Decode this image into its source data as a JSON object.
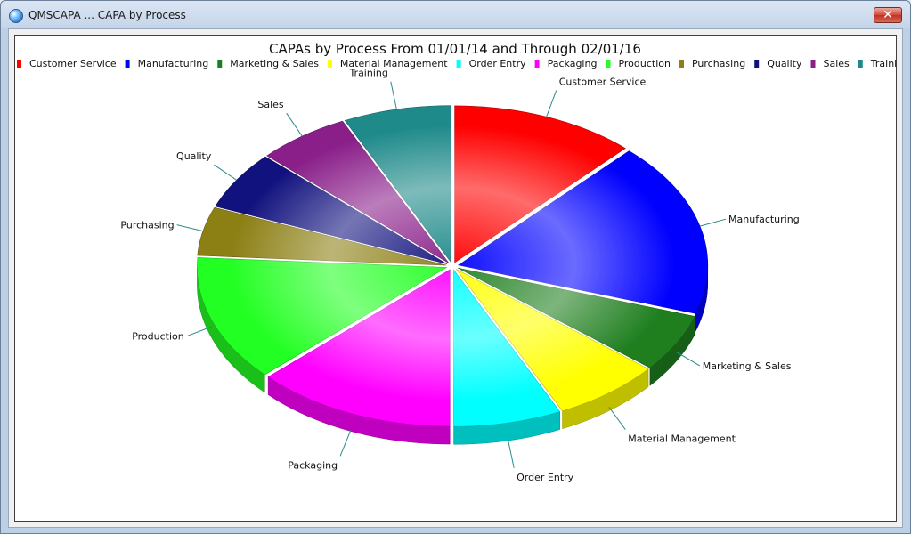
{
  "window": {
    "title": "QMSCAPA ... CAPA by Process",
    "close_glyph": "✕"
  },
  "chart_data": {
    "type": "pie",
    "style": "3d-exploded",
    "title": "CAPAs by Process From 01/01/14 and Through 02/01/16",
    "legend_placement": "top",
    "slices": [
      {
        "label": "Customer Service",
        "value": 12,
        "color": "#ff0000"
      },
      {
        "label": "Manufacturing",
        "value": 18,
        "color": "#0000ff"
      },
      {
        "label": "Marketing & Sales",
        "value": 6,
        "color": "#1f7f1f"
      },
      {
        "label": "Material Management",
        "value": 7,
        "color": "#ffff00"
      },
      {
        "label": "Order Entry",
        "value": 7,
        "color": "#00ffff"
      },
      {
        "label": "Packaging",
        "value": 13,
        "color": "#ff00ff"
      },
      {
        "label": "Production",
        "value": 13,
        "color": "#22ff22"
      },
      {
        "label": "Purchasing",
        "value": 5,
        "color": "#8c7f14"
      },
      {
        "label": "Quality",
        "value": 6,
        "color": "#12127f"
      },
      {
        "label": "Sales",
        "value": 6,
        "color": "#8a1f8a"
      },
      {
        "label": "Training",
        "value": 7,
        "color": "#1f8a8a"
      }
    ]
  }
}
